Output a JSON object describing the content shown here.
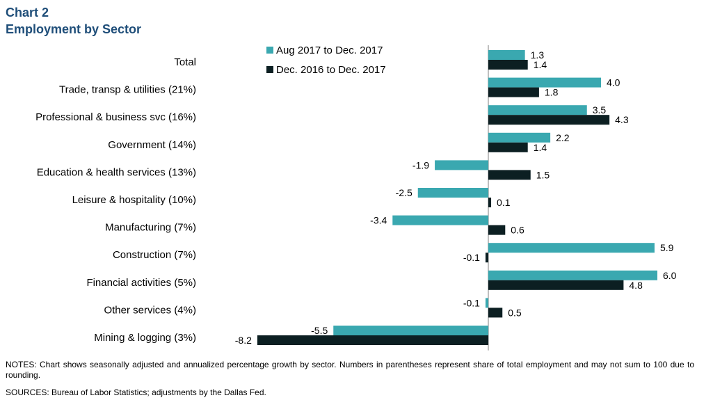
{
  "title_line1": "Chart 2",
  "title_line2": "Employment  by Sector",
  "notes": "NOTES:  Chart shows seasonally adjusted and annualized percentage growth by sector. Numbers  in parentheses represent share of total employment  and may not sum to 100 due to rounding.",
  "sources": "SOURCES:  Bureau of Labor Statistics;  adjustments by the Dallas Fed.",
  "chart_data": {
    "type": "bar",
    "orientation": "horizontal",
    "categories": [
      "Total",
      "Trade, transp & utilities (21%)",
      "Professional & business svc (16%)",
      "Government (14%)",
      "Education & health services (13%)",
      "Leisure & hospitality (10%)",
      "Manufacturing (7%)",
      "Construction (7%)",
      "Financial activities (5%)",
      "Other services (4%)",
      "Mining & logging (3%)"
    ],
    "series": [
      {
        "name": "Aug 2017 to Dec. 2017",
        "color": "#3aa8b0",
        "values": [
          1.3,
          4.0,
          3.5,
          2.2,
          -1.9,
          -2.5,
          -3.4,
          5.9,
          6.0,
          -0.1,
          -5.5
        ],
        "labels": [
          "1.3",
          "4.0",
          "3.5",
          "2.2",
          "-1.9",
          "-2.5",
          "-3.4",
          "5.9",
          "6.0",
          "-0.1",
          "-5.5"
        ]
      },
      {
        "name": "Dec. 2016 to Dec. 2017",
        "color": "#0c1f22",
        "values": [
          1.4,
          1.8,
          4.3,
          1.4,
          1.5,
          0.1,
          0.6,
          -0.1,
          4.8,
          0.5,
          -8.2
        ],
        "labels": [
          "1.4",
          "1.8",
          "4.3",
          "1.4",
          "1.5",
          "0.1",
          "0.6",
          "-0.1",
          "4.8",
          "0.5",
          "-8.2"
        ]
      }
    ],
    "legend": "top-left of plot",
    "grid": false,
    "xlim": [
      -8.2,
      6.0
    ]
  }
}
